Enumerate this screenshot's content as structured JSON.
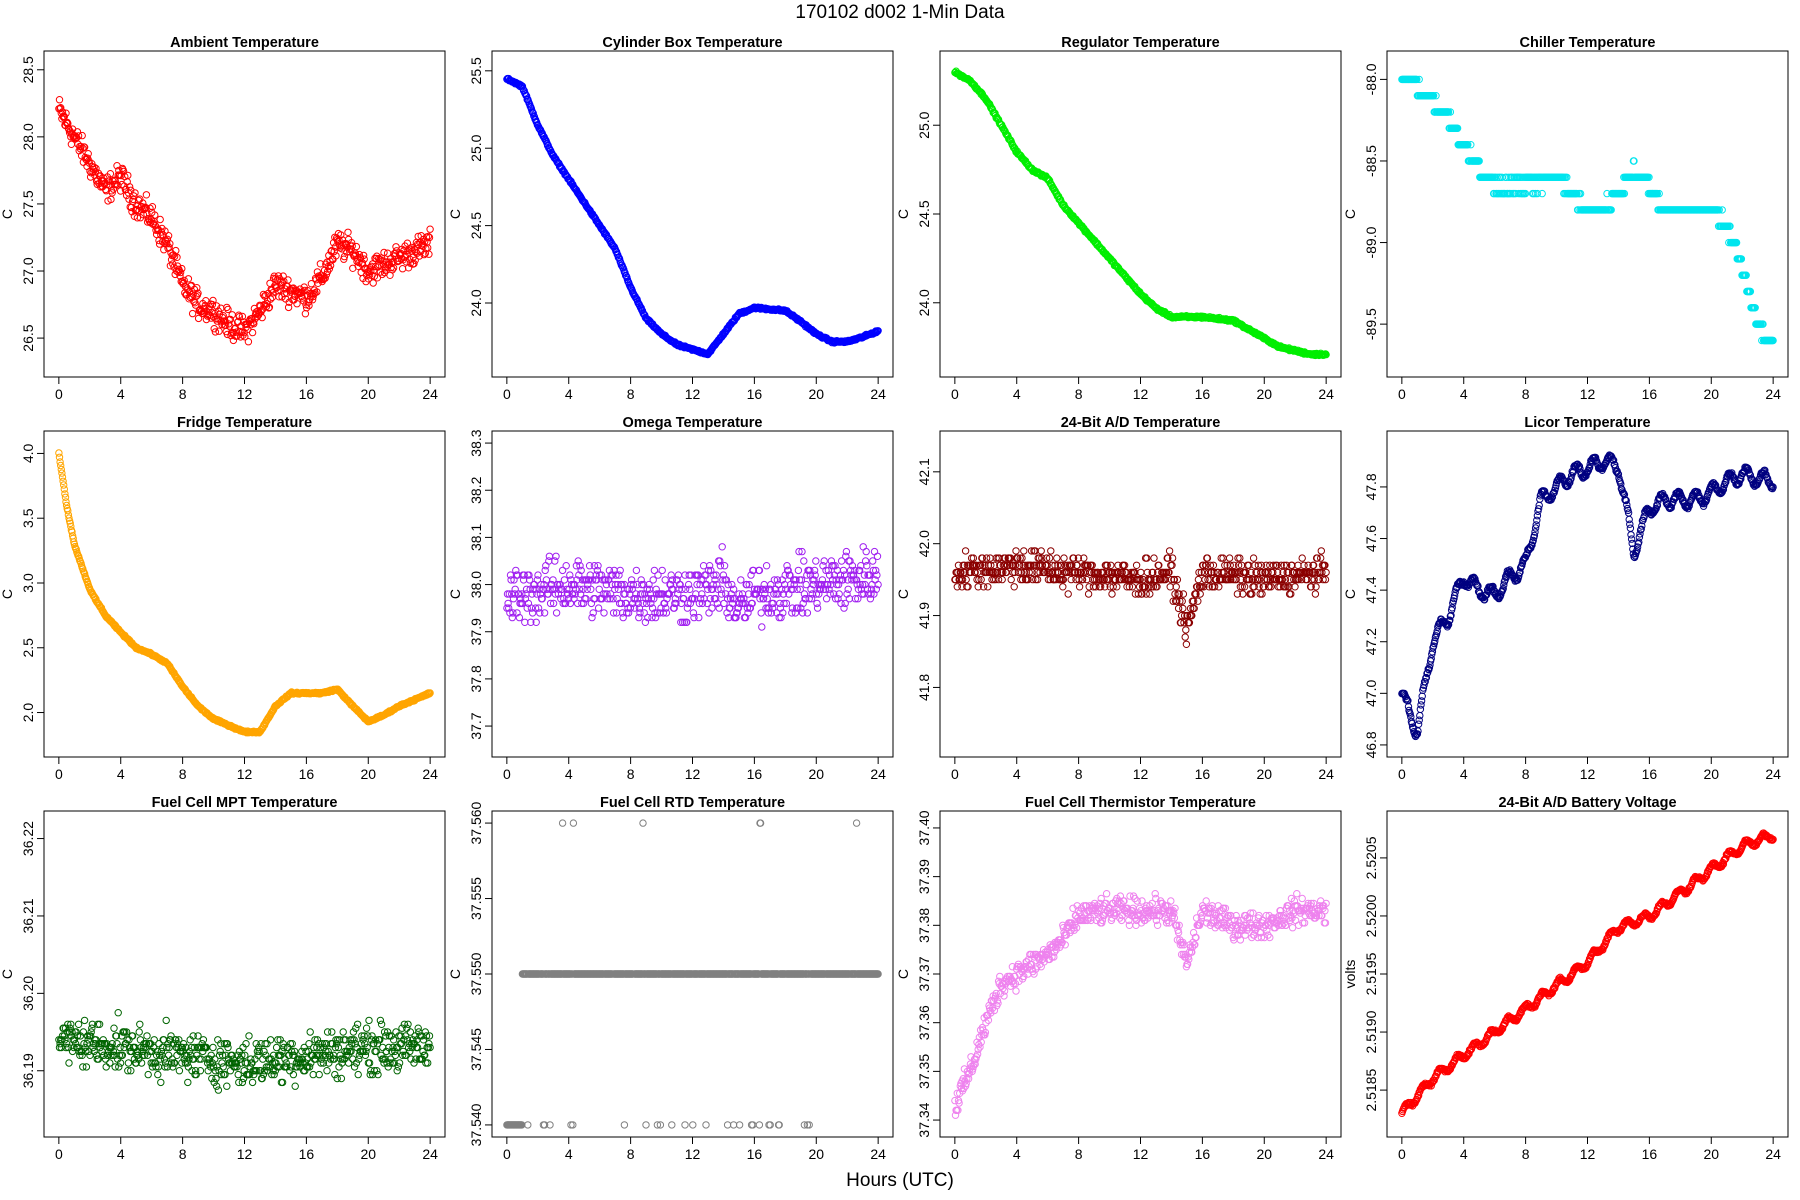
{
  "figure": {
    "title": "170102   d002   1-Min Data",
    "xlabel": "Hours (UTC)"
  },
  "chart_data": [
    {
      "type": "scatter",
      "title": "Ambient Temperature",
      "ylabel": "C",
      "color": "#ff0000",
      "xlim": [
        0,
        24
      ],
      "xticks": [
        0,
        4,
        8,
        12,
        16,
        20,
        24
      ],
      "ylim": [
        26.3,
        28.55
      ],
      "yticks": [
        "26.5",
        "27.0",
        "27.5",
        "28.0",
        "28.5"
      ],
      "series": {
        "x": [
          0,
          0.5,
          1,
          2,
          3,
          4,
          5,
          6,
          7,
          8,
          9,
          10,
          11,
          12,
          13,
          14,
          15,
          16,
          17,
          18,
          19,
          20,
          21,
          22,
          23,
          24
        ],
        "y": [
          28.2,
          28.1,
          28.0,
          27.8,
          27.6,
          27.7,
          27.5,
          27.4,
          27.2,
          26.9,
          26.75,
          26.7,
          26.6,
          26.55,
          26.7,
          26.9,
          26.85,
          26.8,
          26.95,
          27.2,
          27.15,
          27.0,
          27.05,
          27.1,
          27.15,
          27.2
        ]
      },
      "noise": 0.15
    },
    {
      "type": "scatter",
      "title": "Cylinder Box Temperature",
      "ylabel": "C",
      "color": "#0000ff",
      "xlim": [
        0,
        24
      ],
      "xticks": [
        0,
        4,
        8,
        12,
        16,
        20,
        24
      ],
      "ylim": [
        23.6,
        25.55
      ],
      "yticks": [
        "24.0",
        "24.5",
        "25.0",
        "25.5"
      ],
      "series": {
        "x": [
          0,
          1,
          2,
          3,
          4,
          5,
          6,
          7,
          8,
          9,
          10,
          11,
          12,
          13,
          14,
          15,
          16,
          17,
          18,
          19,
          20,
          21,
          22,
          23,
          24
        ],
        "y": [
          25.45,
          25.4,
          25.15,
          24.95,
          24.8,
          24.65,
          24.5,
          24.35,
          24.1,
          23.9,
          23.8,
          23.73,
          23.7,
          23.67,
          23.8,
          23.93,
          23.97,
          23.96,
          23.95,
          23.88,
          23.8,
          23.75,
          23.75,
          23.78,
          23.82
        ]
      },
      "noise": 0.01
    },
    {
      "type": "scatter",
      "title": "Regulator Temperature",
      "ylabel": "C",
      "color": "#00ee00",
      "xlim": [
        0,
        24
      ],
      "xticks": [
        0,
        4,
        8,
        12,
        16,
        20,
        24
      ],
      "ylim": [
        23.65,
        25.35
      ],
      "yticks": [
        "24.0",
        "24.5",
        "25.0"
      ],
      "series": {
        "x": [
          0,
          1,
          2,
          3,
          4,
          5,
          6,
          7,
          8,
          9,
          10,
          11,
          12,
          13,
          14,
          15,
          16,
          17,
          18,
          19,
          20,
          21,
          22,
          23,
          24
        ],
        "y": [
          25.3,
          25.25,
          25.15,
          25.0,
          24.85,
          24.75,
          24.7,
          24.55,
          24.45,
          24.35,
          24.25,
          24.15,
          24.05,
          23.97,
          23.92,
          23.92,
          23.92,
          23.91,
          23.9,
          23.85,
          23.8,
          23.75,
          23.73,
          23.71,
          23.71
        ]
      },
      "noise": 0.01
    },
    {
      "type": "scatter",
      "title": "Chiller Temperature",
      "ylabel": "C",
      "color": "#00e5ee",
      "xlim": [
        0,
        24
      ],
      "xticks": [
        0,
        4,
        8,
        12,
        16,
        20,
        24
      ],
      "ylim": [
        -89.75,
        -87.9
      ],
      "yticks": [
        "-89.5",
        "-89.0",
        "-88.5",
        "-88.0"
      ],
      "series": {
        "x": [
          0,
          1,
          2,
          3,
          4,
          5,
          6,
          8,
          10,
          12,
          13,
          14,
          15,
          16,
          17,
          18,
          19,
          20,
          21,
          22,
          23,
          24
        ],
        "y": [
          -88.0,
          -88.05,
          -88.15,
          -88.25,
          -88.4,
          -88.55,
          -88.65,
          -88.65,
          -88.6,
          -88.8,
          -88.8,
          -88.7,
          -88.55,
          -88.65,
          -88.8,
          -88.8,
          -88.8,
          -88.8,
          -88.9,
          -89.15,
          -89.5,
          -89.65
        ]
      },
      "noise": 0.04,
      "quantum": 0.1
    },
    {
      "type": "scatter",
      "title": "Fridge Temperature",
      "ylabel": "C",
      "color": "#ffa500",
      "xlim": [
        0,
        24
      ],
      "xticks": [
        0,
        4,
        8,
        12,
        16,
        20,
        24
      ],
      "ylim": [
        1.75,
        4.08
      ],
      "yticks": [
        "2.0",
        "2.5",
        "3.0",
        "3.5",
        "4.0"
      ],
      "series": {
        "x": [
          0,
          0.5,
          1,
          2,
          3,
          4,
          5,
          6,
          7,
          8,
          9,
          10,
          11,
          12,
          13,
          14,
          15,
          16,
          17,
          18,
          19,
          20,
          21,
          22,
          23,
          24
        ],
        "y": [
          4.0,
          3.6,
          3.3,
          2.95,
          2.75,
          2.62,
          2.5,
          2.45,
          2.38,
          2.2,
          2.05,
          1.95,
          1.9,
          1.85,
          1.85,
          2.05,
          2.15,
          2.15,
          2.15,
          2.18,
          2.05,
          1.93,
          1.98,
          2.05,
          2.1,
          2.15
        ]
      },
      "noise": 0.01
    },
    {
      "type": "scatter",
      "title": "Omega Temperature",
      "ylabel": "C",
      "color": "#a020f0",
      "xlim": [
        0,
        24
      ],
      "xticks": [
        0,
        4,
        8,
        12,
        16,
        20,
        24
      ],
      "ylim": [
        37.66,
        38.3
      ],
      "yticks": [
        "37.7",
        "37.8",
        "37.9",
        "38.0",
        "38.1",
        "38.2",
        "38.3"
      ],
      "series": {
        "x": [
          0,
          4,
          8,
          12,
          14,
          15,
          16,
          20,
          24
        ],
        "y": [
          37.97,
          38.0,
          37.98,
          37.98,
          38.0,
          37.95,
          37.98,
          38.0,
          38.02
        ]
      },
      "noise": 0.09,
      "quantum": 0.01
    },
    {
      "type": "scatter",
      "title": "24-Bit A/D Temperature",
      "ylabel": "C",
      "color": "#8b0000",
      "xlim": [
        0,
        24
      ],
      "xticks": [
        0,
        4,
        8,
        12,
        16,
        20,
        24
      ],
      "ylim": [
        41.72,
        42.14
      ],
      "yticks": [
        "41.8",
        "41.9",
        "42.0",
        "42.1"
      ],
      "series": {
        "x": [
          0,
          4,
          8,
          12,
          14,
          15,
          16,
          20,
          24
        ],
        "y": [
          41.96,
          41.97,
          41.96,
          41.95,
          41.96,
          41.88,
          41.96,
          41.95,
          41.96
        ]
      },
      "noise": 0.035,
      "quantum": 0.01
    },
    {
      "type": "scatter",
      "title": "Licor Temperature",
      "ylabel": "C",
      "color": "#000080",
      "xlim": [
        0,
        24
      ],
      "xticks": [
        0,
        4,
        8,
        12,
        16,
        20,
        24
      ],
      "ylim": [
        46.8,
        47.97
      ],
      "yticks": [
        "46.8",
        "47.0",
        "47.2",
        "47.4",
        "47.6",
        "47.8"
      ],
      "series": {
        "x": [
          0,
          0.5,
          1,
          2,
          3,
          4,
          5,
          6,
          7,
          8,
          9,
          10,
          11,
          12,
          13,
          14,
          15,
          16,
          17,
          18,
          19,
          20,
          21,
          22,
          23,
          24
        ],
        "y": [
          47.0,
          46.92,
          46.85,
          47.2,
          47.3,
          47.45,
          47.4,
          47.38,
          47.45,
          47.5,
          47.75,
          47.8,
          47.85,
          47.87,
          47.9,
          47.88,
          47.55,
          47.72,
          47.75,
          47.75,
          47.75,
          47.78,
          47.82,
          47.85,
          47.83,
          47.83
        ]
      },
      "noise": 0.012,
      "wave": 0.06
    },
    {
      "type": "scatter",
      "title": "Fuel Cell MPT Temperature",
      "ylabel": "C",
      "color": "#006400",
      "xlim": [
        0,
        24
      ],
      "xticks": [
        0,
        4,
        8,
        12,
        16,
        20,
        24
      ],
      "ylim": [
        36.183,
        36.222
      ],
      "yticks": [
        "36.19",
        "36.20",
        "36.21",
        "36.22"
      ],
      "series": {
        "x": [
          0,
          4,
          8,
          12,
          16,
          20,
          24
        ],
        "y": [
          36.194,
          36.193,
          36.192,
          36.191,
          36.192,
          36.193,
          36.193
        ]
      },
      "noise": 0.0045,
      "quantum": 0.0005
    },
    {
      "type": "scatter",
      "title": "Fuel Cell RTD Temperature",
      "ylabel": "C",
      "color": "#808080",
      "xlim": [
        0,
        24
      ],
      "xticks": [
        0,
        4,
        8,
        12,
        16,
        20,
        24
      ],
      "ylim": [
        37.54,
        37.56
      ],
      "yticks": [
        "37.540",
        "37.545",
        "37.550",
        "37.555",
        "37.560"
      ],
      "series": {
        "x": [
          0,
          24
        ],
        "y": [
          37.55,
          37.55
        ]
      },
      "levels": [
        37.54,
        37.55,
        37.56
      ]
    },
    {
      "type": "scatter",
      "title": "Fuel Cell Thermistor Temperature",
      "ylabel": "C",
      "color": "#ee82ee",
      "xlim": [
        0,
        24
      ],
      "xticks": [
        0,
        4,
        8,
        12,
        16,
        20,
        24
      ],
      "ylim": [
        37.339,
        37.401
      ],
      "yticks": [
        "37.34",
        "37.35",
        "37.36",
        "37.37",
        "37.38",
        "37.39",
        "37.40"
      ],
      "series": {
        "x": [
          0,
          1,
          2,
          3,
          4,
          5,
          6,
          7,
          8,
          10,
          12,
          14,
          15,
          16,
          18,
          20,
          22,
          24
        ],
        "y": [
          37.343,
          37.35,
          37.36,
          37.368,
          37.37,
          37.372,
          37.374,
          37.377,
          37.382,
          37.383,
          37.383,
          37.383,
          37.372,
          37.383,
          37.38,
          37.38,
          37.383,
          37.383
        ]
      },
      "noise": 0.004,
      "quantum": 0.0005
    },
    {
      "type": "scatter",
      "title": "24-Bit A/D Battery Voltage",
      "ylabel": "volts",
      "color": "#ff0000",
      "xlim": [
        0,
        24
      ],
      "xticks": [
        0,
        4,
        8,
        12,
        16,
        20,
        24
      ],
      "ylim": [
        2.5182,
        2.5208
      ],
      "yticks": [
        "2.5185",
        "2.5190",
        "2.5195",
        "2.5200",
        "2.5205"
      ],
      "series": {
        "x": [
          0,
          2,
          4,
          6,
          8,
          10,
          12,
          14,
          16,
          18,
          20,
          22,
          24
        ],
        "y": [
          2.5183,
          2.5186,
          2.5188,
          2.519,
          2.5192,
          2.5194,
          2.5196,
          2.5199,
          2.52,
          2.5202,
          2.5204,
          2.5206,
          2.5207
        ]
      },
      "noise": 2e-05,
      "wave": 7e-05
    }
  ]
}
